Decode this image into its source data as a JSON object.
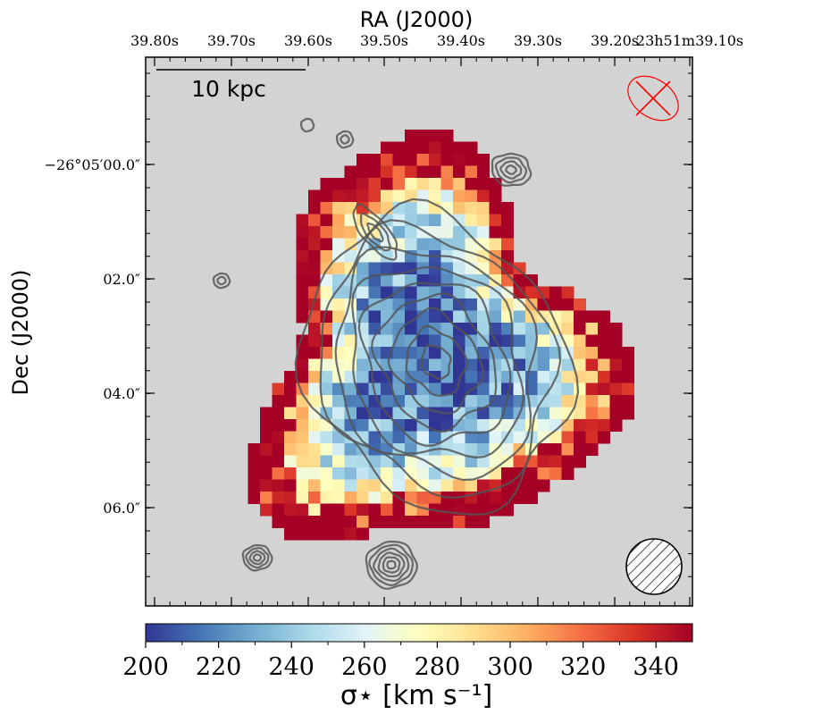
{
  "chart_data": {
    "type": "heatmap",
    "title": "",
    "xlabel": "RA (J2000)",
    "ylabel": "Dec (J2000)",
    "x_tick_labels": [
      "39.80s",
      "39.70s",
      "39.60s",
      "39.50s",
      "39.40s",
      "39.30s",
      "39.20s",
      "23h51m39.10s"
    ],
    "y_tick_labels": [
      "−26°05′00.0″",
      "02.0″",
      "04.0″",
      "06.0″"
    ],
    "scale_bar_label": "10 kpc",
    "colorbar": {
      "label": "σ⋆ [km s⁻¹]",
      "min": 200,
      "max": 350,
      "ticks": [
        200,
        220,
        240,
        260,
        280,
        300,
        320,
        340
      ],
      "tick_labels": [
        "200",
        "220",
        "240",
        "260",
        "280",
        "300",
        "320",
        "340"
      ],
      "colormap": "RdYlBu_r"
    },
    "grid": false,
    "background_color": "#d3d3d3",
    "contour_color": "#555555",
    "beam_color": "#ff0000",
    "map_description": {
      "center_value_range": [
        200,
        240
      ],
      "edge_value_range": [
        290,
        350
      ],
      "note": "Stellar velocity dispersion map; low dispersion (~205-230) in the central body, high dispersion (>320) at the periphery."
    }
  }
}
